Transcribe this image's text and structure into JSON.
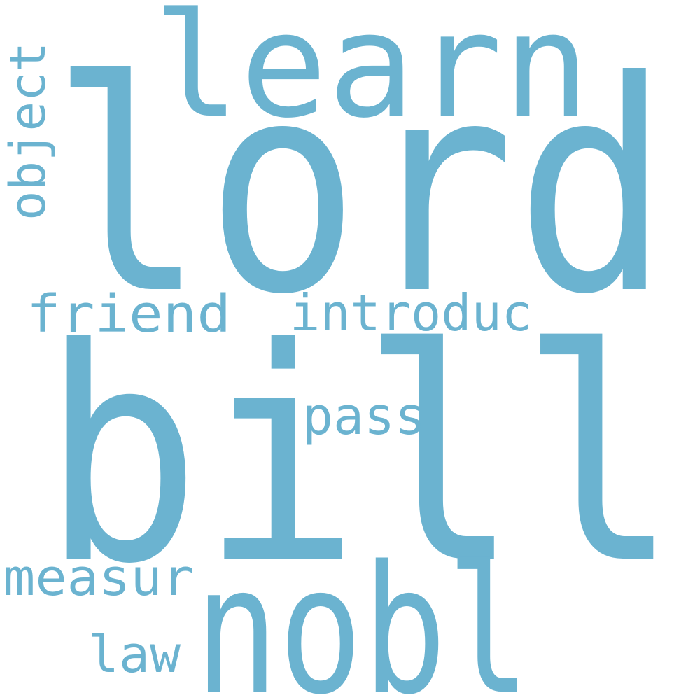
{
  "word_cloud": {
    "color": "#6bb3d0",
    "background": "#ffffff",
    "words": {
      "bill": "bill",
      "lord": "lord",
      "learn": "learn",
      "nobl": "nobl",
      "friend": "friend",
      "introduc": "introduc",
      "object": "object",
      "pass": "pass",
      "measur": "measur",
      "law": "law"
    }
  }
}
